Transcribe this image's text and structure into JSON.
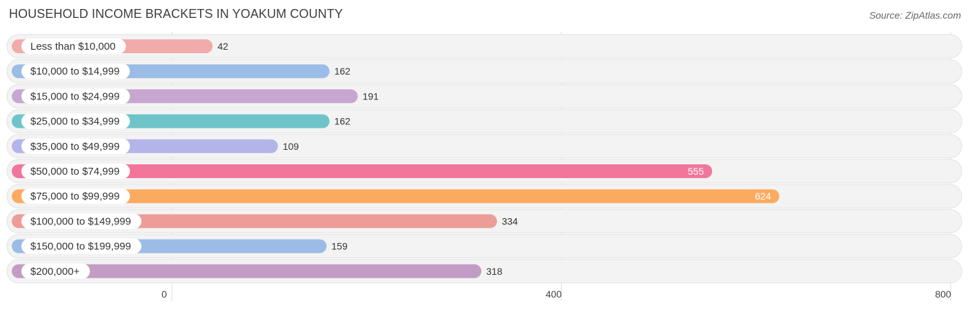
{
  "header": {
    "title": "HOUSEHOLD INCOME BRACKETS IN YOAKUM COUNTY",
    "source": "Source: ZipAtlas.com"
  },
  "chart_data": {
    "type": "bar",
    "orientation": "horizontal",
    "categories": [
      "Less than $10,000",
      "$10,000 to $14,999",
      "$15,000 to $24,999",
      "$25,000 to $34,999",
      "$35,000 to $49,999",
      "$50,000 to $74,999",
      "$75,000 to $99,999",
      "$100,000 to $149,999",
      "$150,000 to $199,999",
      "$200,000+"
    ],
    "values": [
      42,
      162,
      191,
      162,
      109,
      555,
      624,
      334,
      159,
      318
    ],
    "value_labels": [
      "42",
      "162",
      "191",
      "162",
      "109",
      "555",
      "624",
      "334",
      "159",
      "318"
    ],
    "colors": [
      "#f2abab",
      "#9bbce6",
      "#c7a6cf",
      "#6ec4c9",
      "#b3b5ea",
      "#f2769c",
      "#fbab5f",
      "#ec9d97",
      "#9bbce6",
      "#c39cc5"
    ],
    "xlim": [
      0,
      800
    ],
    "xticks": [
      0,
      400,
      800
    ],
    "xtick_labels": [
      "0",
      "400",
      "800"
    ],
    "grid": true
  }
}
